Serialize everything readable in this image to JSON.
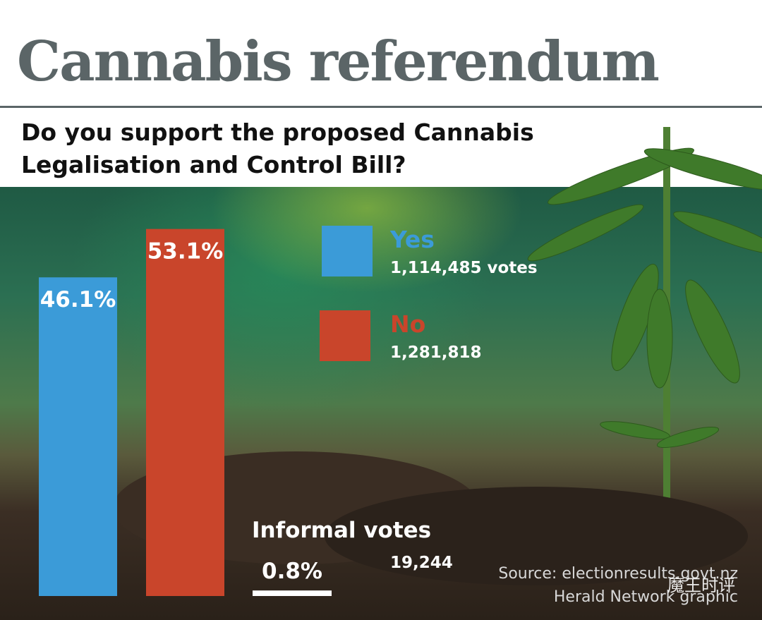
{
  "chart_data": {
    "type": "bar",
    "title": "Cannabis referendum",
    "subtitle": "Do you support the proposed Cannabis Legalisation and Control Bill?",
    "categories": [
      "Yes",
      "No",
      "Informal votes"
    ],
    "values": [
      46.1,
      53.1,
      0.8
    ],
    "value_labels": [
      "46.1%",
      "53.1%",
      "0.8%"
    ],
    "colors": [
      "#3b9bd8",
      "#c9452b",
      "#ffffff"
    ],
    "votes": [
      "1,114,485 votes",
      "1,281,818",
      "19,244"
    ],
    "source": [
      "Source: electionresults.govt.nz",
      "Herald Network graphic"
    ],
    "watermark": "魔王时评"
  }
}
